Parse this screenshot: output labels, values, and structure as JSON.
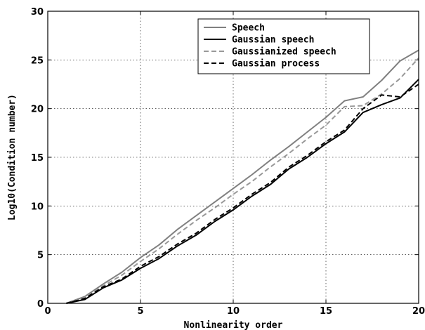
{
  "chart_data": {
    "type": "line",
    "xlabel": "Nonlinearity order",
    "ylabel": "Log10(Condition number)",
    "xlim": [
      0,
      20
    ],
    "ylim": [
      0,
      30
    ],
    "xticks": [
      0,
      5,
      10,
      15,
      20
    ],
    "yticks": [
      0,
      5,
      10,
      15,
      20,
      25,
      30
    ],
    "grid": true,
    "legend_position": "top-right",
    "x": [
      1,
      2,
      3,
      4,
      5,
      6,
      7,
      8,
      9,
      10,
      11,
      12,
      13,
      14,
      15,
      16,
      17,
      18,
      19,
      20
    ],
    "series": [
      {
        "name": "Speech",
        "color": "#808080",
        "dash": "solid",
        "values": [
          0,
          0.7,
          2.0,
          3.2,
          4.7,
          6.0,
          7.6,
          9.0,
          10.4,
          11.8,
          13.2,
          14.7,
          16.1,
          17.6,
          19.1,
          20.8,
          21.2,
          22.9,
          24.9,
          26.0
        ]
      },
      {
        "name": "Gaussian speech",
        "color": "#000000",
        "dash": "solid",
        "values": [
          0,
          0.4,
          1.6,
          2.4,
          3.6,
          4.6,
          5.9,
          7.0,
          8.4,
          9.6,
          11.0,
          12.2,
          13.8,
          15.0,
          16.4,
          17.6,
          19.6,
          20.4,
          21.1,
          23.0
        ]
      },
      {
        "name": "Gaussianized speech",
        "color": "#999999",
        "dash": "dashed",
        "values": [
          0,
          0.6,
          1.8,
          2.9,
          4.3,
          5.6,
          7.1,
          8.5,
          9.8,
          11.2,
          12.5,
          14.0,
          15.4,
          16.9,
          18.3,
          20.2,
          20.3,
          21.5,
          23.1,
          25.2
        ]
      },
      {
        "name": "Gaussian process",
        "color": "#000000",
        "dash": "dashed",
        "values": [
          0,
          0.5,
          1.7,
          2.5,
          3.8,
          4.8,
          6.1,
          7.2,
          8.6,
          9.8,
          11.2,
          12.4,
          14.0,
          15.2,
          16.6,
          17.8,
          20.0,
          21.4,
          21.2,
          22.5
        ]
      }
    ]
  }
}
